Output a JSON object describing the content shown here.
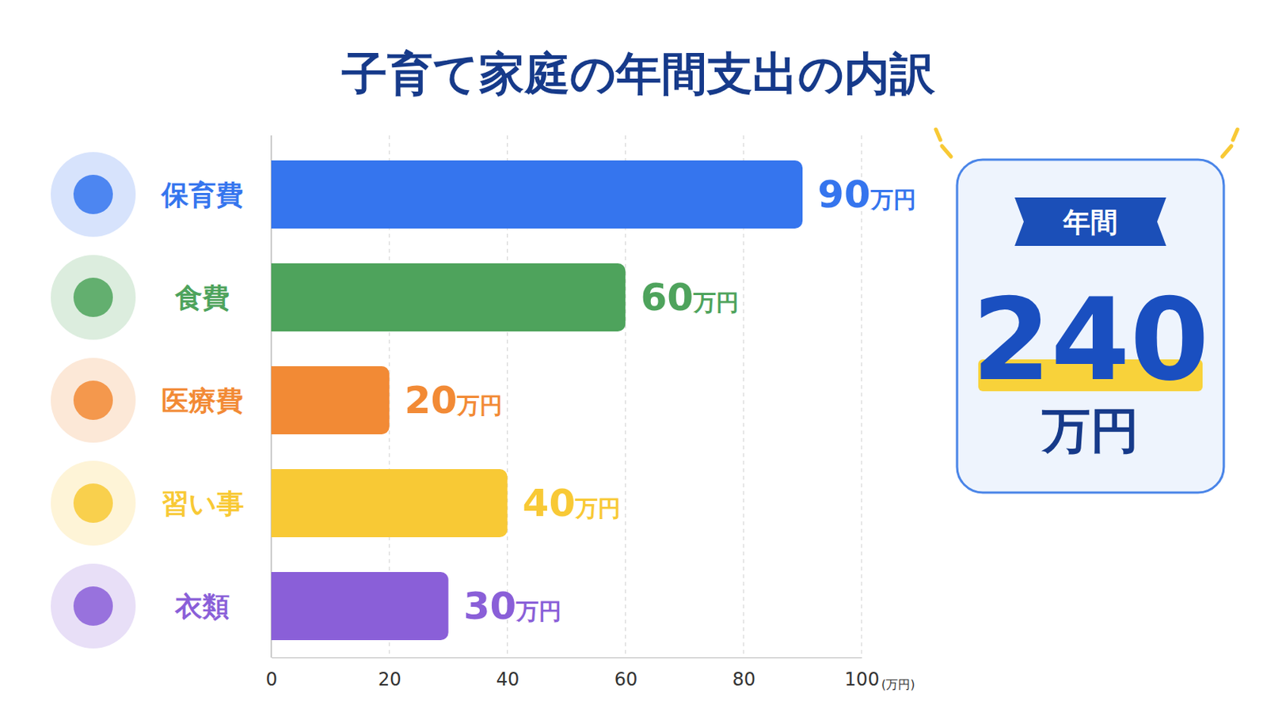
{
  "chart_data": {
    "type": "bar",
    "title": "子育て家庭の年間支出の内訳",
    "orientation": "horizontal",
    "categories": [
      "保育費",
      "食費",
      "医療費",
      "習い事",
      "衣類"
    ],
    "values": [
      90,
      60,
      20,
      40,
      30
    ],
    "value_labels": [
      "90万円",
      "60万円",
      "20万円",
      "40万円",
      "30万円"
    ],
    "colors": [
      "#3575ee",
      "#4ea35c",
      "#f28a35",
      "#f8c935",
      "#8a5fd8"
    ],
    "xlim": [
      0,
      100
    ],
    "xticks": [
      0,
      20,
      40,
      60,
      80,
      100
    ],
    "xlabel": "(万円)",
    "grid": true,
    "data_labels": true,
    "annotations": [
      {
        "label": "年間",
        "value": 240,
        "unit": "万円"
      }
    ]
  }
}
